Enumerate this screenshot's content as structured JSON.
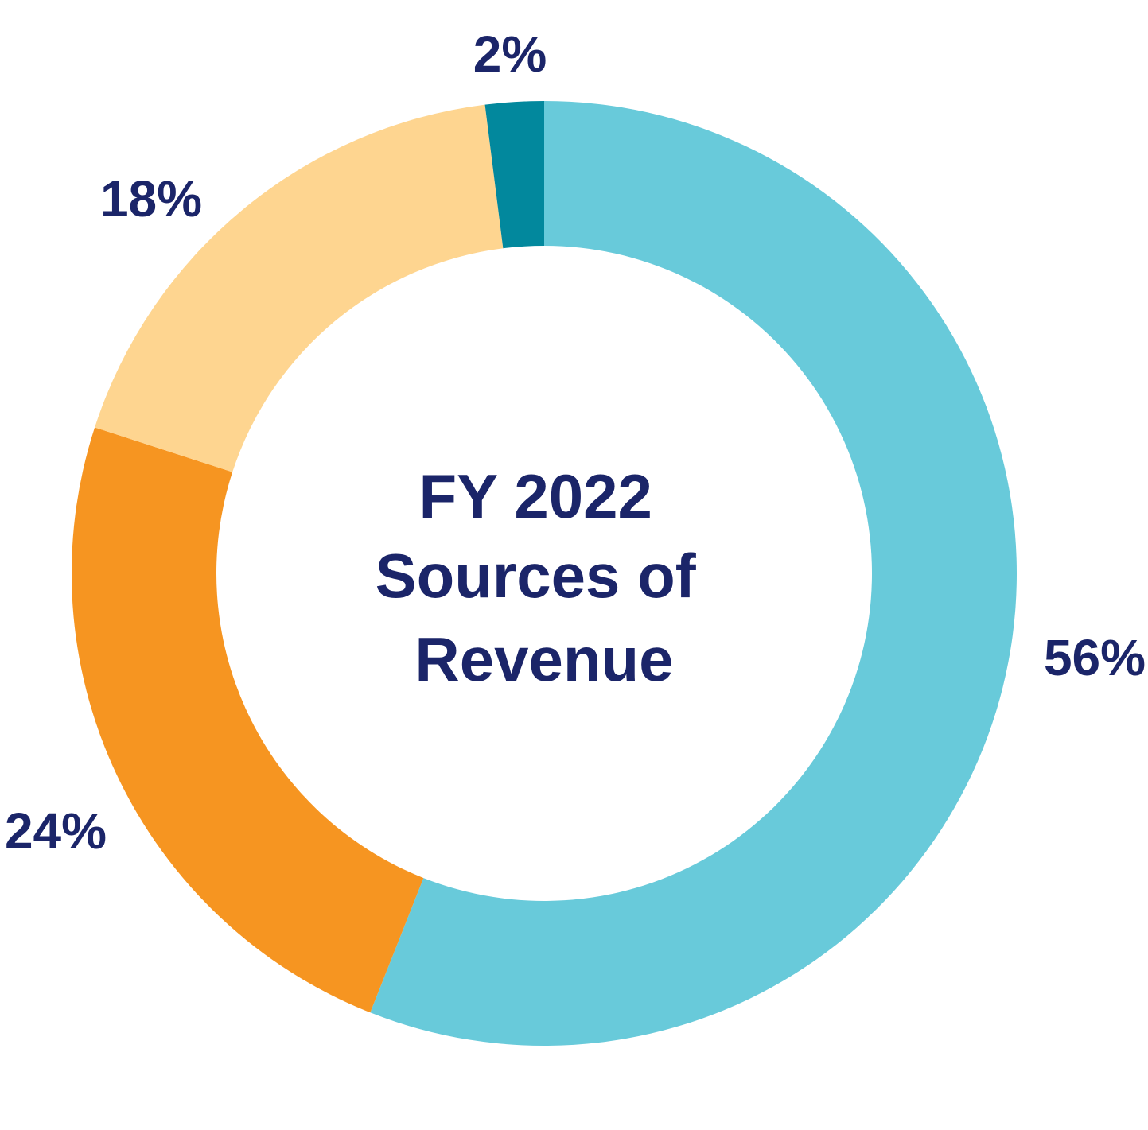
{
  "chart_data": {
    "type": "pie",
    "variant": "donut",
    "title_lines": [
      "FY 2022",
      "Sources of",
      "Revenue"
    ],
    "slices": [
      {
        "value": 56,
        "label": "56%",
        "color": "#68CADA"
      },
      {
        "value": 24,
        "label": "24%",
        "color": "#F69521"
      },
      {
        "value": 18,
        "label": "18%",
        "color": "#FED590"
      },
      {
        "value": 2,
        "label": "2%",
        "color": "#02889D"
      }
    ],
    "start_angle_deg": 0,
    "direction": "clockwise",
    "legend": "none"
  },
  "theme": {
    "text_color": "#1B2569",
    "background": "#ffffff"
  }
}
